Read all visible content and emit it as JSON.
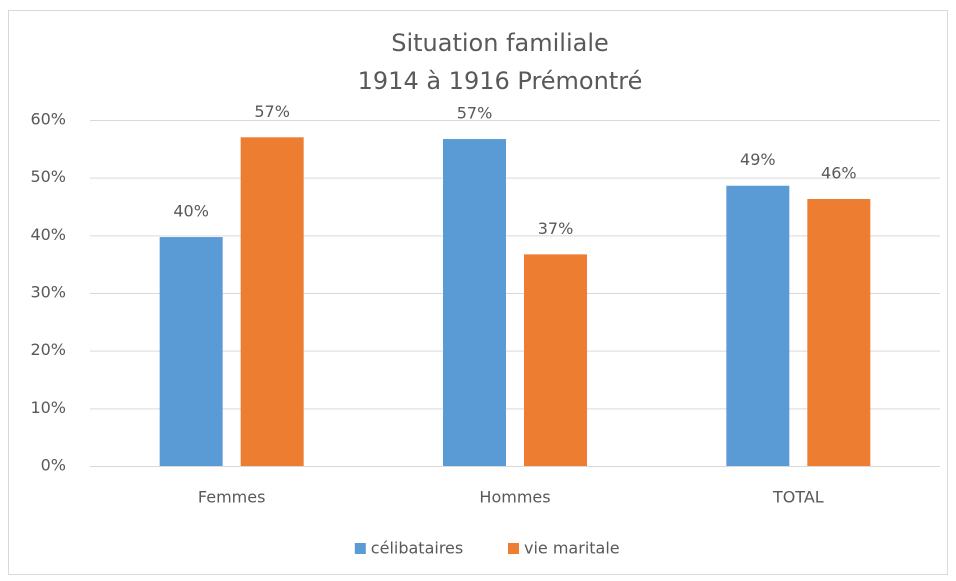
{
  "chart_data": {
    "type": "bar",
    "title": "Situation familiale",
    "subtitle": "1914 à 1916 Prémontré",
    "categories": [
      "Femmes",
      "Hommes",
      "TOTAL"
    ],
    "series": [
      {
        "name": "célibataires",
        "color": "#5b9bd5",
        "values": [
          39.7,
          56.7,
          48.6
        ],
        "value_labels": [
          "40%",
          "57%",
          "49%"
        ]
      },
      {
        "name": "vie maritale",
        "color": "#ed7d31",
        "values": [
          57.0,
          36.7,
          46.3
        ],
        "value_labels": [
          "57%",
          "37%",
          "46%"
        ]
      }
    ],
    "ylim": [
      0,
      60
    ],
    "yticks": [
      {
        "value": 0,
        "label": "0%"
      },
      {
        "value": 10,
        "label": "10%"
      },
      {
        "value": 20,
        "label": "20%"
      },
      {
        "value": 30,
        "label": "30%"
      },
      {
        "value": 40,
        "label": "40%"
      },
      {
        "value": 50,
        "label": "50%"
      },
      {
        "value": 60,
        "label": "60%"
      }
    ],
    "grid": true,
    "legend": "bottom"
  }
}
